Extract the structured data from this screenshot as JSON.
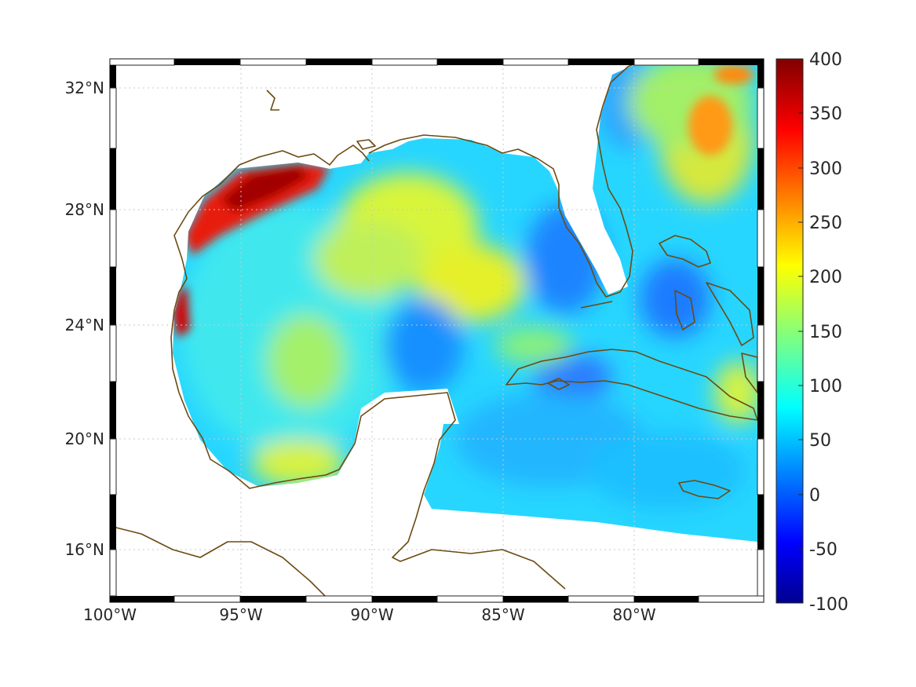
{
  "map": {
    "region": "Gulf of Mexico and Caribbean",
    "lon_range": [
      -100,
      -75
    ],
    "lat_range": [
      14.2,
      33
    ],
    "lat_ticks": [
      {
        "value": 32,
        "label": "32°N"
      },
      {
        "value": 28,
        "label": "28°N"
      },
      {
        "value": 24,
        "label": "24°N"
      },
      {
        "value": 20,
        "label": "20°N"
      },
      {
        "value": 16,
        "label": "16°N"
      }
    ],
    "lon_ticks": [
      {
        "value": -100,
        "label": "100°W"
      },
      {
        "value": -95,
        "label": "95°W"
      },
      {
        "value": -90,
        "label": "90°W"
      },
      {
        "value": -85,
        "label": "85°W"
      },
      {
        "value": -80,
        "label": "80°W"
      }
    ],
    "grid": true,
    "coastline_color": "#6b4a12",
    "colormap": "jet"
  },
  "colorbar": {
    "range": [
      -100,
      400
    ],
    "ticks": [
      {
        "value": 400,
        "label": "400"
      },
      {
        "value": 350,
        "label": "350"
      },
      {
        "value": 300,
        "label": "300"
      },
      {
        "value": 250,
        "label": "250"
      },
      {
        "value": 200,
        "label": "200"
      },
      {
        "value": 150,
        "label": "150"
      },
      {
        "value": 100,
        "label": "100"
      },
      {
        "value": 50,
        "label": "50"
      },
      {
        "value": 0,
        "label": "0"
      },
      {
        "value": -50,
        "label": "-50"
      },
      {
        "value": -100,
        "label": "-100"
      }
    ]
  }
}
